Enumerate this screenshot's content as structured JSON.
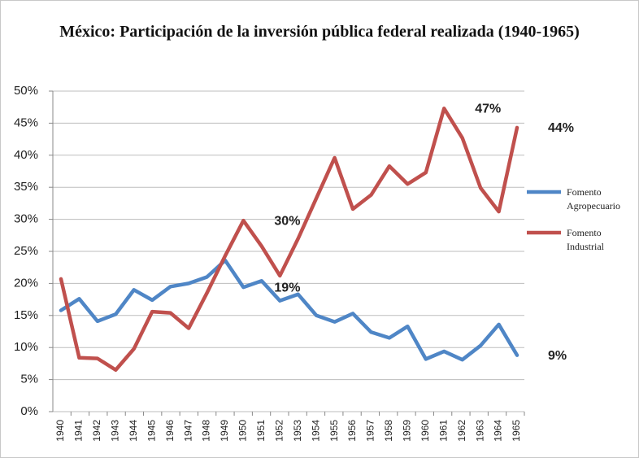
{
  "chart_data": {
    "type": "line",
    "title": "México: Participación de la inversión pública federal realizada (1940-1965)",
    "categories": [
      "1940",
      "1941",
      "1942",
      "1943",
      "1944",
      "1945",
      "1946",
      "1947",
      "1948",
      "1949",
      "1950",
      "1951",
      "1952",
      "1953",
      "1954",
      "1955",
      "1956",
      "1957",
      "1958",
      "1959",
      "1960",
      "1961",
      "1962",
      "1963",
      "1964",
      "1965"
    ],
    "series": [
      {
        "name": "Fomento Agropecuario",
        "color": "#4f86c6",
        "values": [
          15.8,
          17.6,
          14.1,
          15.2,
          19.0,
          17.4,
          19.5,
          20.0,
          21.0,
          23.6,
          19.4,
          20.4,
          17.3,
          18.3,
          15.0,
          14.0,
          15.3,
          12.4,
          11.5,
          13.3,
          8.2,
          9.4,
          8.1,
          10.3,
          13.6,
          8.8
        ],
        "value_labels": [
          null,
          null,
          null,
          null,
          null,
          null,
          null,
          null,
          null,
          null,
          "19%",
          null,
          null,
          null,
          null,
          null,
          null,
          null,
          null,
          null,
          null,
          null,
          null,
          null,
          null,
          "9%"
        ]
      },
      {
        "name": "Fomento Industrial",
        "color": "#c0504d",
        "values": [
          20.7,
          8.4,
          8.3,
          6.5,
          9.8,
          15.6,
          15.4,
          13.0,
          18.5,
          24.3,
          29.8,
          25.8,
          21.2,
          27.0,
          33.3,
          39.6,
          31.6,
          33.8,
          38.3,
          35.5,
          37.3,
          47.3,
          42.7,
          34.9,
          31.2,
          44.3
        ],
        "value_labels": [
          null,
          null,
          null,
          null,
          null,
          null,
          null,
          null,
          null,
          null,
          "30%",
          null,
          null,
          null,
          null,
          null,
          null,
          null,
          null,
          null,
          null,
          "47%",
          null,
          null,
          null,
          "44%"
        ]
      }
    ],
    "ylim": [
      0,
      50
    ],
    "yticks": [
      {
        "value": 0,
        "label": "0%"
      },
      {
        "value": 5,
        "label": "5%"
      },
      {
        "value": 10,
        "label": "10%"
      },
      {
        "value": 15,
        "label": "15%"
      },
      {
        "value": 20,
        "label": "20%"
      },
      {
        "value": 25,
        "label": "25%"
      },
      {
        "value": 30,
        "label": "30%"
      },
      {
        "value": 35,
        "label": "35%"
      },
      {
        "value": 40,
        "label": "40%"
      },
      {
        "value": 45,
        "label": "45%"
      },
      {
        "value": 50,
        "label": "50%"
      }
    ],
    "grid": true,
    "legend": "right"
  }
}
